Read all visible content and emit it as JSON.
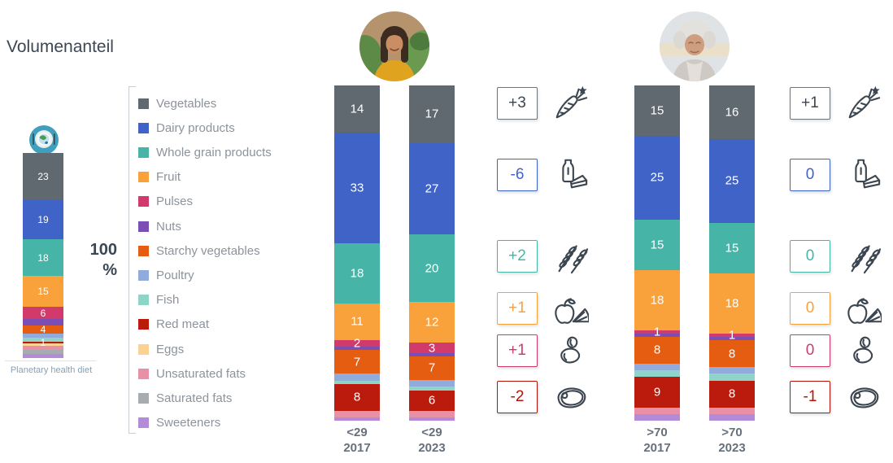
{
  "title": "Volumenanteil",
  "axis": {
    "value": "100",
    "unit": "%"
  },
  "chart_data": {
    "type": "bar",
    "stacked": true,
    "orientation": "vertical",
    "value_unit": "percent of total volume",
    "ylim": [
      0,
      100
    ],
    "categories": [
      {
        "name": "Vegetables",
        "color": "#616970"
      },
      {
        "name": "Dairy products",
        "color": "#3f63c6"
      },
      {
        "name": "Whole grain products",
        "color": "#46b5a8"
      },
      {
        "name": "Fruit",
        "color": "#f9a13b"
      },
      {
        "name": "Pulses",
        "color": "#d23a6b"
      },
      {
        "name": "Nuts",
        "color": "#7a4eb5"
      },
      {
        "name": "Starchy vegetables",
        "color": "#e55d11"
      },
      {
        "name": "Poultry",
        "color": "#91abdc"
      },
      {
        "name": "Fish",
        "color": "#8fd4c8"
      },
      {
        "name": "Red meat",
        "color": "#bb1b0d"
      },
      {
        "name": "Eggs",
        "color": "#fbd194"
      },
      {
        "name": "Unsaturated fats",
        "color": "#e890a5"
      },
      {
        "name": "Saturated fats",
        "color": "#a7acb1"
      },
      {
        "name": "Sweeteners",
        "color": "#b38bd9"
      }
    ],
    "labeled_category_indices": [
      0,
      1,
      2,
      3,
      4,
      6,
      9
    ],
    "reference": {
      "label": "Planetary health diet",
      "icon": "planetary-diet-icon",
      "values": [
        23,
        19,
        18,
        15,
        6,
        3,
        4,
        2,
        2,
        1,
        1,
        2,
        2,
        2
      ]
    },
    "groups": [
      {
        "id": "under-29",
        "age_label": "<29",
        "avatar_icon": "young-woman-avatar",
        "bars": [
          {
            "year": "2017",
            "values": [
              14,
              33,
              18,
              11,
              2,
              1,
              7,
              2,
              1,
              8,
              0,
              2,
              0,
              1
            ]
          },
          {
            "year": "2023",
            "values": [
              17,
              27,
              20,
              12,
              3,
              1,
              7,
              2,
              1,
              6,
              0,
              2,
              0,
              1
            ]
          }
        ],
        "deltas": [
          {
            "value": "+3",
            "category": "Vegetables",
            "icon": "carrot-icon",
            "border": "#6d757c",
            "text": "#3c4650"
          },
          {
            "value": "-6",
            "category": "Dairy products",
            "icon": "dairy-icon",
            "border": "#3f63c6",
            "text": "#3f63c6"
          },
          {
            "value": "+2",
            "category": "Whole grain products",
            "icon": "wheat-icon",
            "border": "#46b5a8",
            "text": "#46b5a8"
          },
          {
            "value": "+1",
            "category": "Fruit",
            "icon": "fruit-icon",
            "border": "#f9a13b",
            "text": "#f9a13b"
          },
          {
            "value": "+1",
            "category": "Pulses",
            "icon": "beans-icon",
            "border": "#d23a6b",
            "text": "#d23a6b"
          },
          {
            "value": "-2",
            "category": "Red meat",
            "icon": "steak-icon",
            "border": "#b5120a",
            "text": "#b5120a"
          }
        ]
      },
      {
        "id": "over-70",
        "age_label": ">70",
        "avatar_icon": "elderly-woman-avatar",
        "bars": [
          {
            "year": "2017",
            "values": [
              15,
              25,
              15,
              18,
              1,
              1,
              8,
              2,
              2,
              9,
              0,
              2,
              0,
              2
            ]
          },
          {
            "year": "2023",
            "values": [
              16,
              25,
              15,
              18,
              1,
              1,
              8,
              2,
              2,
              8,
              0,
              2,
              0,
              2
            ]
          }
        ],
        "deltas": [
          {
            "value": "+1",
            "category": "Vegetables",
            "icon": "carrot-icon",
            "border": "#6d757c",
            "text": "#3c4650"
          },
          {
            "value": "0",
            "category": "Dairy products",
            "icon": "dairy-icon",
            "border": "#3f63c6",
            "text": "#3f63c6"
          },
          {
            "value": "0",
            "category": "Whole grain products",
            "icon": "wheat-icon",
            "border": "#46b5a8",
            "text": "#46b5a8"
          },
          {
            "value": "0",
            "category": "Fruit",
            "icon": "fruit-icon",
            "border": "#f9a13b",
            "text": "#f9a13b"
          },
          {
            "value": "0",
            "category": "Pulses",
            "icon": "beans-icon",
            "border": "#d23a6b",
            "text": "#d23a6b"
          },
          {
            "value": "-1",
            "category": "Red meat",
            "icon": "steak-icon",
            "border": "#b5120a",
            "text": "#b5120a"
          }
        ]
      }
    ]
  }
}
